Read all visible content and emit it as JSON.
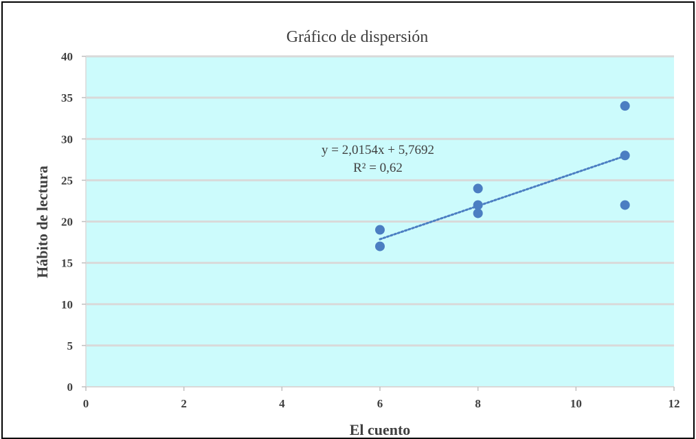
{
  "chart_data": {
    "type": "scatter",
    "title": "Gráfico de dispersión",
    "xlabel": "El cuento",
    "ylabel": "Hábito de lectura",
    "xlim": [
      0,
      12
    ],
    "ylim": [
      0,
      40
    ],
    "x_ticks": [
      "0",
      "2",
      "4",
      "6",
      "8",
      "10",
      "12"
    ],
    "y_ticks": [
      "0",
      "5",
      "10",
      "15",
      "20",
      "25",
      "30",
      "35",
      "40"
    ],
    "grid": "horizontal",
    "points": [
      {
        "x": 6,
        "y": 19
      },
      {
        "x": 6,
        "y": 17
      },
      {
        "x": 8,
        "y": 24
      },
      {
        "x": 8,
        "y": 22
      },
      {
        "x": 8,
        "y": 21
      },
      {
        "x": 11,
        "y": 34
      },
      {
        "x": 11,
        "y": 28
      },
      {
        "x": 11,
        "y": 22
      }
    ],
    "trendline": {
      "type": "linear",
      "slope": 2.0154,
      "intercept": 5.7692,
      "x_range": [
        6,
        11
      ],
      "equation_label": "y = 2,0154x + 5,7692",
      "r2_label": "R² = 0,62"
    },
    "colors": {
      "plot_background": "#ccfbfc",
      "gridline": "#d9d9d9",
      "marker": "#4b7ec2",
      "trendline": "#4b7ec2"
    }
  }
}
